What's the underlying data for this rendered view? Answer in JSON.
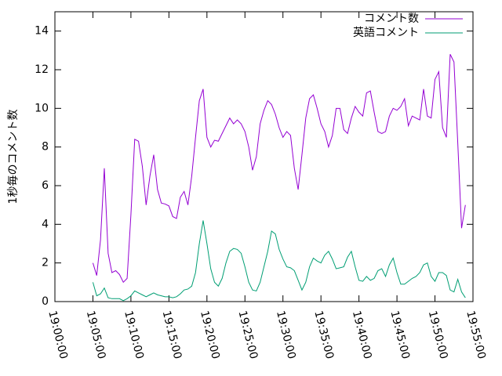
{
  "chart_data": {
    "type": "line",
    "ylabel": "1秒毎のコメント数",
    "x": [
      "19:05:00",
      "19:05:30",
      "19:06:00",
      "19:06:30",
      "19:07:00",
      "19:07:30",
      "19:08:00",
      "19:08:30",
      "19:09:00",
      "19:09:30",
      "19:10:00",
      "19:10:30",
      "19:11:00",
      "19:11:30",
      "19:12:00",
      "19:12:30",
      "19:13:00",
      "19:13:30",
      "19:14:00",
      "19:14:30",
      "19:15:00",
      "19:15:30",
      "19:16:00",
      "19:16:30",
      "19:17:00",
      "19:17:30",
      "19:18:00",
      "19:18:30",
      "19:19:00",
      "19:19:30",
      "19:20:00",
      "19:20:30",
      "19:21:00",
      "19:21:30",
      "19:22:00",
      "19:22:30",
      "19:23:00",
      "19:23:30",
      "19:24:00",
      "19:24:30",
      "19:25:00",
      "19:25:30",
      "19:26:00",
      "19:26:30",
      "19:27:00",
      "19:27:30",
      "19:28:00",
      "19:28:30",
      "19:29:00",
      "19:29:30",
      "19:30:00",
      "19:30:30",
      "19:31:00",
      "19:31:30",
      "19:32:00",
      "19:32:30",
      "19:33:00",
      "19:33:30",
      "19:34:00",
      "19:34:30",
      "19:35:00",
      "19:35:30",
      "19:36:00",
      "19:36:30",
      "19:37:00",
      "19:37:30",
      "19:38:00",
      "19:38:30",
      "19:39:00",
      "19:39:30",
      "19:40:00",
      "19:40:30",
      "19:41:00",
      "19:41:30",
      "19:42:00",
      "19:42:30",
      "19:43:00",
      "19:43:30",
      "19:44:00",
      "19:44:30",
      "19:45:00",
      "19:45:30",
      "19:46:00",
      "19:46:30",
      "19:47:00",
      "19:47:30",
      "19:48:00",
      "19:48:30",
      "19:49:00",
      "19:49:30",
      "19:50:00",
      "19:50:30",
      "19:51:00",
      "19:51:30",
      "19:52:00",
      "19:52:30",
      "19:53:00",
      "19:53:30",
      "19:54:00"
    ],
    "series": [
      {
        "name": "コメント数",
        "color": "#9400d3",
        "values": [
          2.0,
          1.35,
          3.2,
          6.9,
          2.5,
          1.5,
          1.6,
          1.4,
          1.0,
          1.2,
          4.5,
          8.4,
          8.3,
          7.0,
          5.0,
          6.5,
          7.6,
          5.8,
          5.1,
          5.05,
          4.95,
          4.4,
          4.3,
          5.4,
          5.7,
          5.0,
          6.5,
          8.5,
          10.4,
          11.0,
          8.5,
          8.0,
          8.35,
          8.3,
          8.7,
          9.1,
          9.5,
          9.2,
          9.4,
          9.2,
          8.8,
          8.0,
          6.8,
          7.5,
          9.2,
          9.9,
          10.4,
          10.2,
          9.7,
          9.0,
          8.5,
          8.8,
          8.6,
          6.9,
          5.8,
          7.6,
          9.5,
          10.5,
          10.7,
          10.0,
          9.2,
          8.8,
          8.0,
          8.6,
          10.0,
          10.0,
          8.9,
          8.7,
          9.5,
          10.1,
          9.8,
          9.6,
          10.8,
          10.9,
          9.8,
          8.8,
          8.7,
          8.8,
          9.6,
          10.0,
          9.9,
          10.1,
          10.5,
          9.1,
          9.6,
          9.5,
          9.4,
          11.0,
          9.6,
          9.5,
          11.5,
          11.9,
          9.0,
          8.5,
          12.8,
          12.4,
          8.2,
          3.8,
          5.0
        ]
      },
      {
        "name": "英語コメント",
        "color": "#009e73",
        "values": [
          1.0,
          0.3,
          0.4,
          0.7,
          0.2,
          0.15,
          0.15,
          0.15,
          0.05,
          0.15,
          0.3,
          0.55,
          0.45,
          0.35,
          0.25,
          0.35,
          0.45,
          0.35,
          0.3,
          0.25,
          0.25,
          0.2,
          0.25,
          0.4,
          0.6,
          0.65,
          0.8,
          1.5,
          3.0,
          4.2,
          3.0,
          1.7,
          1.0,
          0.8,
          1.2,
          2.0,
          2.6,
          2.75,
          2.7,
          2.5,
          1.8,
          1.0,
          0.6,
          0.55,
          1.0,
          1.8,
          2.6,
          3.65,
          3.5,
          2.7,
          2.2,
          1.8,
          1.75,
          1.6,
          1.1,
          0.6,
          1.0,
          1.8,
          2.25,
          2.1,
          2.0,
          2.4,
          2.6,
          2.2,
          1.7,
          1.75,
          1.8,
          2.3,
          2.6,
          1.8,
          1.1,
          1.05,
          1.3,
          1.1,
          1.2,
          1.6,
          1.7,
          1.3,
          1.9,
          2.25,
          1.5,
          0.9,
          0.9,
          1.05,
          1.2,
          1.3,
          1.5,
          1.9,
          2.0,
          1.3,
          1.05,
          1.5,
          1.5,
          1.35,
          0.6,
          0.5,
          1.15,
          0.5,
          0.2
        ]
      }
    ],
    "xlim": [
      "19:00:00",
      "19:55:00"
    ],
    "xticks": [
      "19:00:00",
      "19:05:00",
      "19:10:00",
      "19:15:00",
      "19:20:00",
      "19:25:00",
      "19:30:00",
      "19:35:00",
      "19:40:00",
      "19:45:00",
      "19:50:00",
      "19:55:00"
    ],
    "ylim": [
      0,
      15
    ],
    "yticks": [
      0,
      2,
      4,
      6,
      8,
      10,
      12,
      14
    ],
    "legend": "top-right",
    "grid": false
  }
}
